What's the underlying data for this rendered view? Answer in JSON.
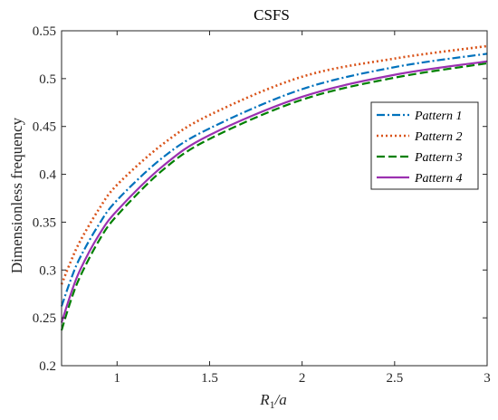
{
  "chart_data": {
    "type": "line",
    "title": "CSFS",
    "xlabel": "R",
    "xlabel_sub": "1",
    "xlabel_rest": "/a",
    "ylabel": "Dimensionless frequency",
    "xlim": [
      0.7,
      3
    ],
    "ylim": [
      0.2,
      0.55
    ],
    "xticks": [
      "1",
      "1.5",
      "2",
      "2.5",
      "3"
    ],
    "xtick_values": [
      1,
      1.5,
      2,
      2.5,
      3
    ],
    "yticks": [
      "0.2",
      "0.25",
      "0.3",
      "0.35",
      "0.4",
      "0.45",
      "0.5",
      "0.55"
    ],
    "ytick_values": [
      0.2,
      0.25,
      0.3,
      0.35,
      0.4,
      0.45,
      0.5,
      0.55
    ],
    "grid": false,
    "legend_position": "right",
    "x": [
      0.7,
      0.75,
      0.8,
      0.9,
      1.0,
      1.25,
      1.5,
      2.0,
      2.5,
      3.0
    ],
    "series": [
      {
        "name": "Pattern 1",
        "color": "#0072BD",
        "dash": "dashdot",
        "values": [
          0.262,
          0.29,
          0.313,
          0.347,
          0.373,
          0.418,
          0.448,
          0.489,
          0.512,
          0.526
        ]
      },
      {
        "name": "Pattern 2",
        "color": "#D95319",
        "dash": "dotted",
        "values": [
          0.285,
          0.309,
          0.33,
          0.363,
          0.389,
          0.432,
          0.462,
          0.502,
          0.521,
          0.534
        ]
      },
      {
        "name": "Pattern 3",
        "color": "#008000",
        "dash": "dashed",
        "values": [
          0.237,
          0.268,
          0.293,
          0.33,
          0.357,
          0.405,
          0.437,
          0.478,
          0.501,
          0.516
        ]
      },
      {
        "name": "Pattern 4",
        "color": "#9B30B0",
        "dash": "solid",
        "values": [
          0.245,
          0.275,
          0.3,
          0.336,
          0.362,
          0.409,
          0.441,
          0.481,
          0.504,
          0.518
        ]
      }
    ]
  }
}
